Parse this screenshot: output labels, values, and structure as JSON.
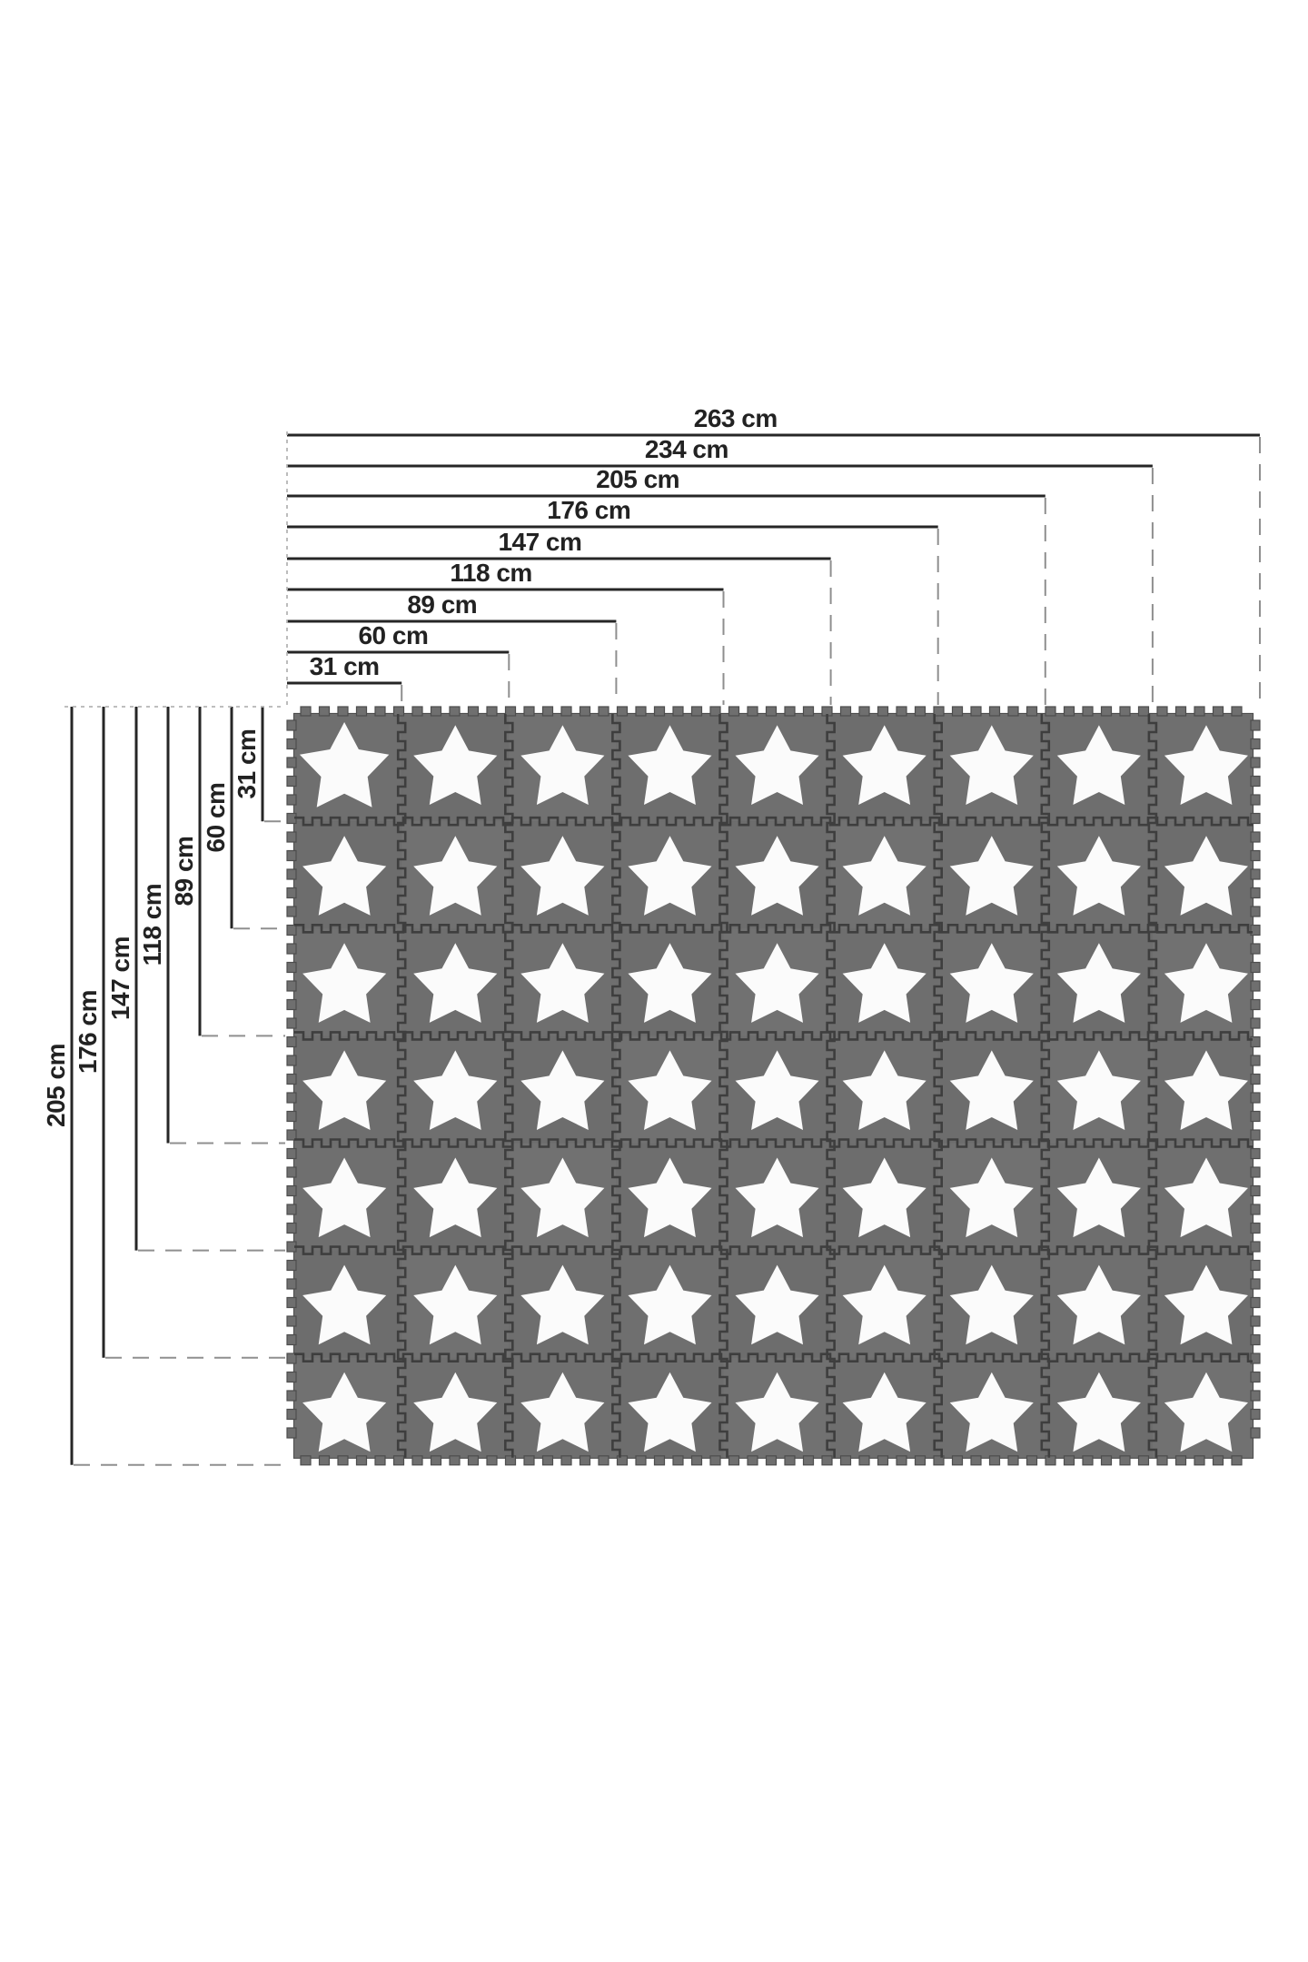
{
  "diagram": {
    "title": "Interlocking foam play mat dimension diagram",
    "unit": "cm",
    "width_measurements": [
      {
        "label": "263 cm",
        "value": 263
      },
      {
        "label": "234 cm",
        "value": 234
      },
      {
        "label": "205 cm",
        "value": 205
      },
      {
        "label": "176 cm",
        "value": 176
      },
      {
        "label": "147 cm",
        "value": 147
      },
      {
        "label": "118 cm",
        "value": 118
      },
      {
        "label": "89 cm",
        "value": 89
      },
      {
        "label": "60 cm",
        "value": 60
      },
      {
        "label": "31 cm",
        "value": 31
      }
    ],
    "height_measurements": [
      {
        "label": "205 cm",
        "value": 205
      },
      {
        "label": "176 cm",
        "value": 176
      },
      {
        "label": "147 cm",
        "value": 147
      },
      {
        "label": "118 cm",
        "value": 118
      },
      {
        "label": "89 cm",
        "value": 89
      },
      {
        "label": "60 cm",
        "value": 60
      },
      {
        "label": "31 cm",
        "value": 31
      }
    ],
    "mat": {
      "columns": 9,
      "rows": 7,
      "tile_motif": "star",
      "colors": {
        "tile": "#6f6f6f",
        "tile_shades": [
          "#6f6f6f",
          "#6d6d6d",
          "#717171",
          "#6e6e6e"
        ],
        "star": "#fbfbfb",
        "seam": "#3e3e3e",
        "edge_outline": "#4d4d4d",
        "dimension_line": "#262626",
        "guide_dash": "#8f8f8f",
        "guide_dot": "#b5b5b5",
        "background": "#ffffff"
      }
    }
  }
}
